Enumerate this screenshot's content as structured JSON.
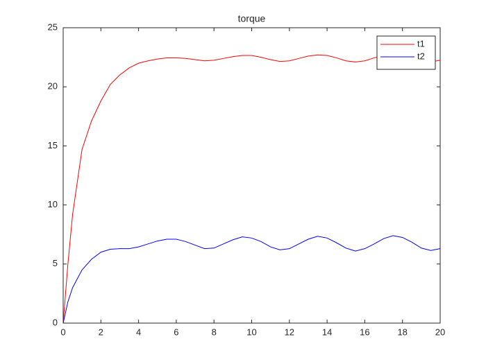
{
  "chart_data": {
    "type": "line",
    "title": "torque",
    "x": [
      0,
      0.25,
      0.5,
      1,
      1.5,
      2,
      2.5,
      3,
      3.5,
      4,
      4.5,
      5,
      5.5,
      6,
      6.5,
      7,
      7.5,
      8,
      8.5,
      9,
      9.5,
      10,
      10.5,
      11,
      11.5,
      12,
      12.5,
      13,
      13.5,
      14,
      14.5,
      15,
      15.5,
      16,
      16.5,
      17,
      17.5,
      18,
      18.5,
      19,
      19.5,
      20
    ],
    "series": [
      {
        "name": "t1",
        "color": "#ff0000",
        "values": [
          0,
          5,
          9.2,
          14.7,
          17.1,
          18.8,
          20.2,
          21.0,
          21.6,
          22.0,
          22.2,
          22.35,
          22.45,
          22.45,
          22.4,
          22.3,
          22.2,
          22.25,
          22.4,
          22.55,
          22.65,
          22.65,
          22.5,
          22.3,
          22.15,
          22.2,
          22.4,
          22.6,
          22.7,
          22.65,
          22.45,
          22.2,
          22.1,
          22.2,
          22.45,
          22.65,
          22.75,
          22.7,
          22.45,
          22.2,
          22.1,
          22.25
        ]
      },
      {
        "name": "t2",
        "color": "#0000ff",
        "values": [
          0,
          1.8,
          3.0,
          4.5,
          5.4,
          6.0,
          6.25,
          6.3,
          6.3,
          6.45,
          6.7,
          6.95,
          7.1,
          7.1,
          6.9,
          6.6,
          6.3,
          6.35,
          6.7,
          7.05,
          7.3,
          7.2,
          6.9,
          6.45,
          6.2,
          6.3,
          6.7,
          7.1,
          7.35,
          7.2,
          6.8,
          6.35,
          6.1,
          6.3,
          6.7,
          7.15,
          7.4,
          7.25,
          6.85,
          6.35,
          6.15,
          6.3
        ]
      }
    ],
    "xlim": [
      0,
      20
    ],
    "xticks": [
      0,
      2,
      4,
      6,
      8,
      10,
      12,
      14,
      16,
      18,
      20
    ],
    "ylim": [
      0,
      25
    ],
    "yticks": [
      0,
      5,
      10,
      15,
      20,
      25
    ],
    "grid": false,
    "legend": "northeast"
  }
}
